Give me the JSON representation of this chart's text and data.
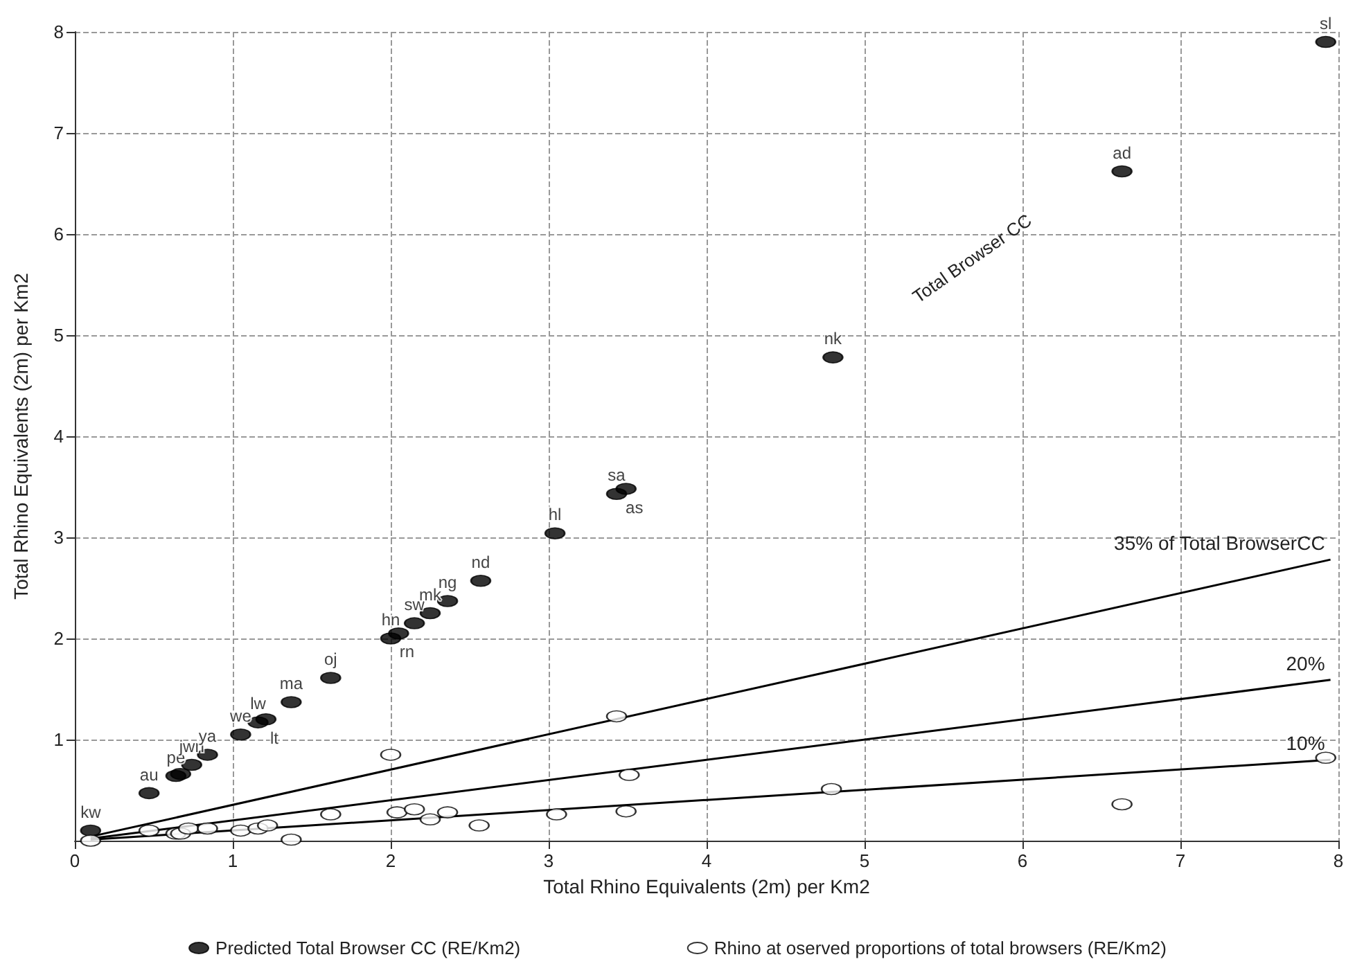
{
  "chart_data": {
    "type": "scatter",
    "xlabel": "Total Rhino Equivalents (2m) per Km2",
    "ylabel": "Total Rhino Equivalents (2m) per Km2",
    "xlim": [
      0,
      8
    ],
    "xticks": [
      0,
      1,
      2,
      3,
      4,
      5,
      6,
      7,
      8
    ],
    "ylim": [
      0,
      8
    ],
    "yticks": [
      1,
      2,
      3,
      4,
      5,
      6,
      7,
      8
    ],
    "grid": true,
    "legend": "bottom",
    "marker": "circle",
    "annotations": [
      "Total Browser CC"
    ],
    "series": [
      {
        "name": "Predicted Total Browser CC (RE/Km2)",
        "color": "#000000",
        "x": [
          0.1,
          0.47,
          0.64,
          0.67,
          0.74,
          0.84,
          1.05,
          1.16,
          1.21,
          1.37,
          1.62,
          2.0,
          2.05,
          2.15,
          2.25,
          2.36,
          2.57,
          3.04,
          3.43,
          3.49,
          4.8,
          6.63,
          7.92
        ],
        "values": [
          0.1,
          0.47,
          0.64,
          0.66,
          0.75,
          0.85,
          1.05,
          1.17,
          1.2,
          1.37,
          1.61,
          2.0,
          2.05,
          2.15,
          2.25,
          2.37,
          2.57,
          3.04,
          3.43,
          3.48,
          4.78,
          6.62,
          7.9
        ],
        "value_labels": [
          "kw",
          "au",
          "pe",
          null,
          "jwn",
          "ya",
          "we",
          "lw",
          "lt",
          "ma",
          "oj",
          "hn",
          "rn",
          "sw",
          "mk",
          "ng",
          "nd",
          "hl",
          "sa",
          "as",
          "nk",
          "ad",
          "sl"
        ]
      },
      {
        "name": "Rhino at oserved proportions of total browsers (RE/Km2)",
        "color": "#ffffff",
        "x": [
          0.1,
          0.47,
          0.64,
          0.67,
          0.72,
          0.84,
          1.05,
          1.16,
          1.22,
          1.37,
          1.62,
          2.0,
          2.04,
          2.15,
          2.25,
          2.36,
          2.56,
          3.05,
          3.43,
          3.51,
          3.49,
          4.79,
          6.63,
          7.92
        ],
        "values": [
          0.0,
          0.1,
          0.07,
          0.07,
          0.12,
          0.12,
          0.1,
          0.12,
          0.15,
          0.01,
          0.26,
          0.85,
          0.28,
          0.31,
          0.21,
          0.28,
          0.15,
          0.26,
          1.23,
          0.65,
          0.29,
          0.51,
          0.36,
          0.82
        ]
      },
      {
        "name": "35% of Total BrowserCC",
        "type": "line",
        "marker": "none",
        "color": "#000000",
        "x": [
          0.1,
          7.95
        ],
        "values": [
          0.04,
          2.78
        ]
      },
      {
        "name": "20%",
        "type": "line",
        "marker": "none",
        "color": "#000000",
        "x": [
          0.1,
          7.95
        ],
        "values": [
          0.02,
          1.59
        ]
      },
      {
        "name": "10%",
        "type": "line",
        "marker": "none",
        "color": "#000000",
        "x": [
          0.1,
          7.95
        ],
        "values": [
          0.01,
          0.8
        ]
      }
    ]
  }
}
